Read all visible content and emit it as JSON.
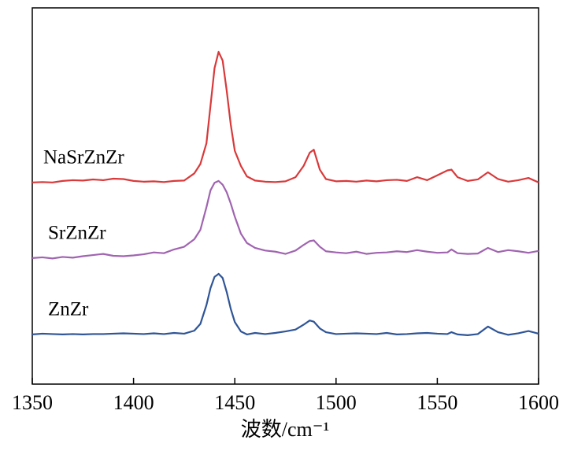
{
  "chart_data": {
    "type": "line",
    "xlabel": "波数/cm⁻¹",
    "xlim": [
      1350,
      1600
    ],
    "xticks": [
      1350,
      1400,
      1450,
      1500,
      1550,
      1600
    ],
    "ylim": [
      0,
      100
    ],
    "x": [
      1350,
      1355,
      1360,
      1365,
      1370,
      1375,
      1380,
      1385,
      1390,
      1395,
      1400,
      1405,
      1410,
      1415,
      1420,
      1425,
      1430,
      1433,
      1436,
      1438,
      1440,
      1442,
      1444,
      1446,
      1448,
      1450,
      1453,
      1456,
      1460,
      1465,
      1470,
      1475,
      1480,
      1484,
      1487,
      1489,
      1492,
      1495,
      1500,
      1505,
      1510,
      1515,
      1520,
      1525,
      1530,
      1535,
      1540,
      1545,
      1550,
      1555,
      1557,
      1560,
      1565,
      1570,
      1575,
      1580,
      1585,
      1590,
      1595,
      1600
    ],
    "series": [
      {
        "name": "ZnZr",
        "color": "#2f5597",
        "values": [
          13.2,
          13.4,
          13.3,
          13.2,
          13.3,
          13.2,
          13.3,
          13.3,
          13.4,
          13.5,
          13.4,
          13.3,
          13.5,
          13.3,
          13.6,
          13.4,
          14.2,
          16,
          21,
          25.5,
          28.5,
          29.3,
          28.2,
          24.5,
          20,
          16.5,
          14,
          13.2,
          13.6,
          13.3,
          13.6,
          14,
          14.5,
          15.8,
          16.9,
          16.6,
          14.8,
          13.8,
          13.3,
          13.4,
          13.5,
          13.4,
          13.3,
          13.6,
          13.2,
          13.3,
          13.5,
          13.6,
          13.4,
          13.3,
          13.8,
          13.2,
          13.0,
          13.3,
          15.3,
          13.8,
          13.1,
          13.5,
          14.1,
          13.4
        ]
      },
      {
        "name": "SrZnZr",
        "color": "#a064b0",
        "values": [
          33.5,
          33.7,
          33.4,
          33.8,
          33.6,
          34,
          34.3,
          34.6,
          34.1,
          34,
          34.2,
          34.5,
          35,
          34.8,
          35.8,
          36.5,
          38.5,
          41,
          47,
          51.5,
          53.5,
          54,
          53,
          51,
          48,
          44.5,
          40,
          37.5,
          36.2,
          35.5,
          35.2,
          34.6,
          35.5,
          37,
          38,
          38.2,
          36.5,
          35.3,
          35,
          34.8,
          35.2,
          34.6,
          34.9,
          35,
          35.3,
          35.1,
          35.6,
          35.2,
          34.9,
          35,
          35.8,
          34.8,
          34.6,
          34.7,
          36.2,
          35.1,
          35.6,
          35.3,
          34.9,
          35.4
        ]
      },
      {
        "name": "NaSrZnZr",
        "color": "#d9393a",
        "values": [
          53.6,
          53.7,
          53.6,
          54,
          54.2,
          54.1,
          54.4,
          54.2,
          54.6,
          54.5,
          54,
          53.8,
          53.9,
          53.7,
          54,
          54.1,
          56,
          58.5,
          64,
          74,
          84,
          88.3,
          86,
          78,
          69,
          62,
          58,
          55.2,
          54.1,
          53.8,
          53.7,
          53.9,
          55,
          58,
          61.5,
          62.3,
          57,
          54.5,
          53.9,
          54,
          53.8,
          54.1,
          53.9,
          54.2,
          54.3,
          54,
          55,
          54.2,
          55.5,
          56.8,
          57,
          55,
          54,
          54.4,
          56.3,
          54.5,
          53.8,
          54.2,
          54.8,
          53.6
        ]
      }
    ]
  }
}
